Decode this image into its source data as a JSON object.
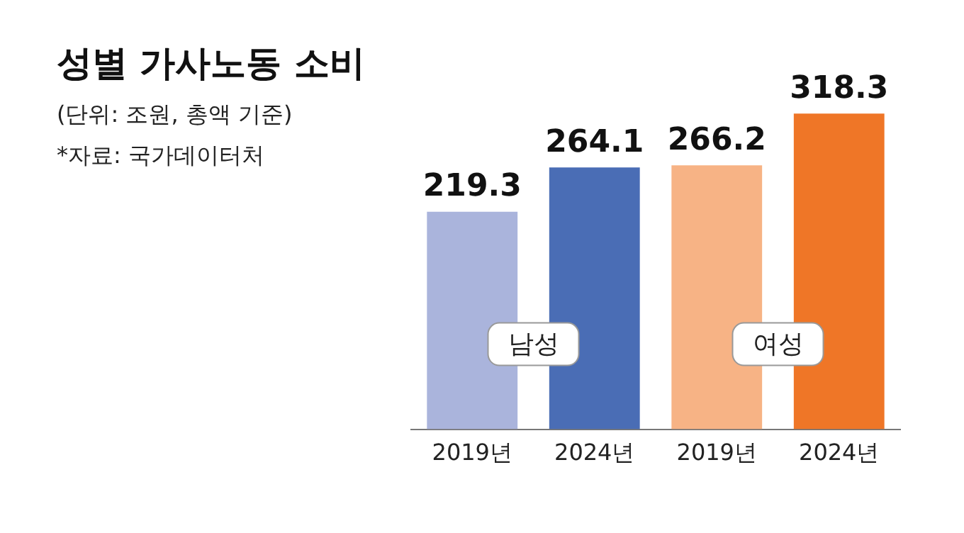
{
  "chart_data": {
    "type": "bar",
    "title": "성별 가사노동 소비",
    "subtitle": "(단위: 조원, 총액 기준)",
    "categories": [
      "2019년",
      "2024년",
      "2019년",
      "2024년"
    ],
    "values": [
      219.3,
      264.1,
      266.2,
      318.3
    ],
    "colors": [
      "#aab4dc",
      "#4a6db5",
      "#f7b385",
      "#ef7627"
    ],
    "annotations": [
      "남성",
      "여성",
      "*자료: 국가데이터처"
    ],
    "data_labels": true,
    "grid": false,
    "legend": false
  }
}
